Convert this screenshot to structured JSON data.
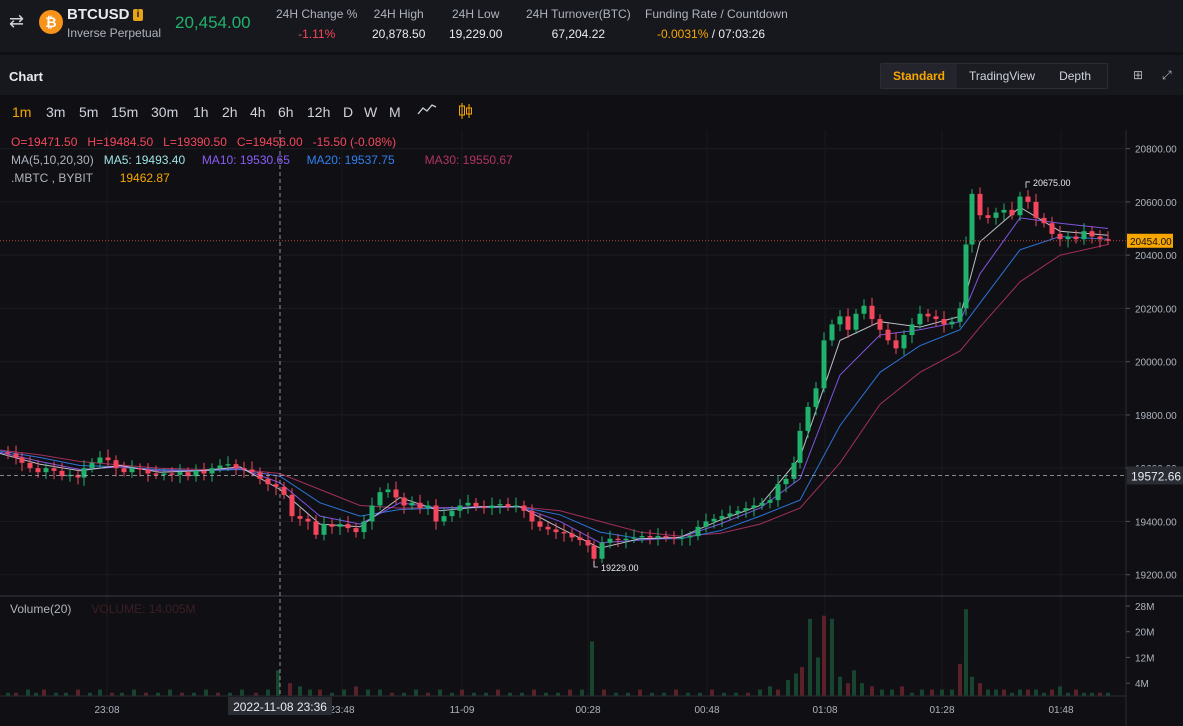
{
  "header": {
    "symbol": "BTCUSD",
    "contract_type": "Inverse Perpetual",
    "last_price": "20,454.00",
    "stats": [
      {
        "label": "24H Change %",
        "value": "-1.11%",
        "color": "#f6465d"
      },
      {
        "label": "24H High",
        "value": "20,878.50",
        "color": "#e8eaf0"
      },
      {
        "label": "24H Low",
        "value": "19,229.00",
        "color": "#e8eaf0"
      },
      {
        "label": "24H Turnover(BTC)",
        "value": "67,204.22",
        "color": "#e8eaf0"
      }
    ],
    "funding": {
      "label": "Funding Rate / Countdown",
      "rate": "-0.0031%",
      "countdown": "/ 07:03:26"
    }
  },
  "chart_header": {
    "title": "Chart",
    "tabs": [
      {
        "label": "Standard",
        "active": true
      },
      {
        "label": "TradingView",
        "active": false
      },
      {
        "label": "Depth",
        "active": false
      }
    ]
  },
  "intervals": {
    "items": [
      "1m",
      "3m",
      "5m",
      "15m",
      "30m",
      "1h",
      "2h",
      "4h",
      "6h",
      "12h",
      "D",
      "W",
      "M"
    ],
    "active": "1m"
  },
  "ohlc_legend": {
    "o": "O=19471.50",
    "h": "H=19484.50",
    "l": "L=19390.50",
    "c": "C=19456.00",
    "chg": "-15.50",
    "chg_pct": "(-0.08%)"
  },
  "ma_legend": {
    "label": "MA(5,10,20,30)",
    "ma5": "MA5: 19493.40",
    "ma10": "MA10: 19530.65",
    "ma20": "MA20: 19537.75",
    "ma30": "MA30: 19550.67"
  },
  "index_legend": {
    "label": ".MBTC , BYBIT",
    "value": "19462.87"
  },
  "volume_legend": {
    "label": "Volume(20)",
    "value": "VOLUME: 14.005M"
  },
  "crosshair": {
    "time": "2022-11-08 23:36",
    "price": "19572.66"
  },
  "colors": {
    "up": "#20b26c",
    "down": "#f6465d",
    "accent": "#f7a600",
    "ma5": "#cfd3dc",
    "ma10": "#8b5cf6",
    "ma20": "#2f80ed",
    "ma30": "#b13263"
  },
  "chart_data": {
    "type": "candlestick",
    "price_axis_ticks": [
      19200,
      19400,
      19600,
      19800,
      20000,
      20200,
      20400,
      20600,
      20800
    ],
    "price_axis_labels": [
      "19200.00",
      "19400.00",
      "19600.00",
      "19800.00",
      "20000.00",
      "20200.00",
      "20400.00",
      "20600.00",
      "20800.00"
    ],
    "ylim": [
      19120,
      20870
    ],
    "time_labels": [
      "23:08",
      "23:48",
      "11-09",
      "00:28",
      "00:48",
      "01:08",
      "01:28",
      "01:48"
    ],
    "current_price": "20454.00",
    "high_marker": "20675.00",
    "low_marker": "19229.00",
    "volume_ticks": [
      "4M",
      "12M",
      "20M",
      "28M"
    ],
    "volume_max": 28,
    "price_path": [
      [
        0,
        19660
      ],
      [
        8,
        19655
      ],
      [
        16,
        19640
      ],
      [
        22,
        19620
      ],
      [
        30,
        19600
      ],
      [
        38,
        19585
      ],
      [
        46,
        19600
      ],
      [
        54,
        19590
      ],
      [
        62,
        19570
      ],
      [
        70,
        19575
      ],
      [
        78,
        19565
      ],
      [
        84,
        19600
      ],
      [
        92,
        19620
      ],
      [
        100,
        19640
      ],
      [
        108,
        19630
      ],
      [
        116,
        19600
      ],
      [
        124,
        19585
      ],
      [
        132,
        19600
      ],
      [
        140,
        19595
      ],
      [
        148,
        19580
      ],
      [
        156,
        19575
      ],
      [
        164,
        19580
      ],
      [
        172,
        19575
      ],
      [
        180,
        19585
      ],
      [
        188,
        19570
      ],
      [
        196,
        19590
      ],
      [
        204,
        19580
      ],
      [
        212,
        19600
      ],
      [
        220,
        19610
      ],
      [
        228,
        19615
      ],
      [
        236,
        19600
      ],
      [
        244,
        19595
      ],
      [
        252,
        19585
      ],
      [
        260,
        19560
      ],
      [
        268,
        19540
      ],
      [
        276,
        19530
      ],
      [
        284,
        19500
      ],
      [
        292,
        19420
      ],
      [
        300,
        19410
      ],
      [
        308,
        19400
      ],
      [
        316,
        19350
      ],
      [
        324,
        19390
      ],
      [
        332,
        19380
      ],
      [
        340,
        19390
      ],
      [
        348,
        19375
      ],
      [
        356,
        19360
      ],
      [
        364,
        19400
      ],
      [
        372,
        19460
      ],
      [
        380,
        19510
      ],
      [
        388,
        19520
      ],
      [
        396,
        19490
      ],
      [
        404,
        19460
      ],
      [
        412,
        19470
      ],
      [
        420,
        19450
      ],
      [
        428,
        19460
      ],
      [
        436,
        19400
      ],
      [
        444,
        19420
      ],
      [
        452,
        19440
      ],
      [
        460,
        19460
      ],
      [
        468,
        19470
      ],
      [
        476,
        19455
      ],
      [
        484,
        19450
      ],
      [
        492,
        19460
      ],
      [
        500,
        19465
      ],
      [
        508,
        19455
      ],
      [
        516,
        19460
      ],
      [
        524,
        19440
      ],
      [
        532,
        19400
      ],
      [
        540,
        19380
      ],
      [
        548,
        19370
      ],
      [
        556,
        19360
      ],
      [
        564,
        19355
      ],
      [
        572,
        19340
      ],
      [
        580,
        19330
      ],
      [
        588,
        19310
      ],
      [
        594,
        19260
      ],
      [
        602,
        19320
      ],
      [
        610,
        19335
      ],
      [
        618,
        19330
      ],
      [
        626,
        19335
      ],
      [
        634,
        19340
      ],
      [
        642,
        19345
      ],
      [
        650,
        19340
      ],
      [
        658,
        19345
      ],
      [
        666,
        19340
      ],
      [
        674,
        19335
      ],
      [
        682,
        19340
      ],
      [
        690,
        19345
      ],
      [
        698,
        19380
      ],
      [
        706,
        19400
      ],
      [
        714,
        19410
      ],
      [
        722,
        19420
      ],
      [
        730,
        19430
      ],
      [
        738,
        19440
      ],
      [
        746,
        19450
      ],
      [
        754,
        19460
      ],
      [
        762,
        19470
      ],
      [
        770,
        19480
      ],
      [
        778,
        19540
      ],
      [
        786,
        19560
      ],
      [
        794,
        19620
      ],
      [
        800,
        19740
      ],
      [
        808,
        19830
      ],
      [
        816,
        19900
      ],
      [
        824,
        20080
      ],
      [
        832,
        20140
      ],
      [
        840,
        20170
      ],
      [
        848,
        20120
      ],
      [
        856,
        20180
      ],
      [
        864,
        20210
      ],
      [
        872,
        20160
      ],
      [
        880,
        20120
      ],
      [
        888,
        20080
      ],
      [
        896,
        20050
      ],
      [
        904,
        20100
      ],
      [
        912,
        20140
      ],
      [
        920,
        20180
      ],
      [
        928,
        20170
      ],
      [
        936,
        20160
      ],
      [
        944,
        20140
      ],
      [
        952,
        20150
      ],
      [
        960,
        20200
      ],
      [
        966,
        20440
      ],
      [
        972,
        20630
      ],
      [
        980,
        20550
      ],
      [
        988,
        20540
      ],
      [
        996,
        20560
      ],
      [
        1004,
        20570
      ],
      [
        1012,
        20550
      ],
      [
        1020,
        20620
      ],
      [
        1028,
        20600
      ],
      [
        1036,
        20540
      ],
      [
        1044,
        20520
      ],
      [
        1052,
        20480
      ],
      [
        1060,
        20460
      ],
      [
        1068,
        20470
      ],
      [
        1076,
        20460
      ],
      [
        1084,
        20490
      ],
      [
        1092,
        20470
      ],
      [
        1100,
        20460
      ],
      [
        1108,
        20454
      ]
    ],
    "ma5_path": [
      [
        0,
        19655
      ],
      [
        40,
        19615
      ],
      [
        80,
        19590
      ],
      [
        120,
        19610
      ],
      [
        160,
        19585
      ],
      [
        200,
        19590
      ],
      [
        240,
        19605
      ],
      [
        280,
        19520
      ],
      [
        320,
        19390
      ],
      [
        360,
        19380
      ],
      [
        400,
        19490
      ],
      [
        440,
        19440
      ],
      [
        480,
        19455
      ],
      [
        520,
        19455
      ],
      [
        560,
        19375
      ],
      [
        600,
        19300
      ],
      [
        640,
        19335
      ],
      [
        680,
        19340
      ],
      [
        720,
        19405
      ],
      [
        760,
        19460
      ],
      [
        800,
        19640
      ],
      [
        840,
        20080
      ],
      [
        880,
        20150
      ],
      [
        920,
        20130
      ],
      [
        960,
        20170
      ],
      [
        980,
        20450
      ],
      [
        1020,
        20580
      ],
      [
        1060,
        20490
      ],
      [
        1108,
        20475
      ]
    ],
    "ma10_path": [
      [
        0,
        19660
      ],
      [
        40,
        19625
      ],
      [
        80,
        19595
      ],
      [
        120,
        19605
      ],
      [
        160,
        19590
      ],
      [
        200,
        19590
      ],
      [
        240,
        19600
      ],
      [
        280,
        19545
      ],
      [
        320,
        19420
      ],
      [
        360,
        19390
      ],
      [
        400,
        19470
      ],
      [
        440,
        19450
      ],
      [
        480,
        19455
      ],
      [
        520,
        19455
      ],
      [
        560,
        19400
      ],
      [
        600,
        19320
      ],
      [
        640,
        19330
      ],
      [
        680,
        19340
      ],
      [
        720,
        19390
      ],
      [
        760,
        19450
      ],
      [
        800,
        19560
      ],
      [
        840,
        19950
      ],
      [
        880,
        20100
      ],
      [
        920,
        20120
      ],
      [
        960,
        20150
      ],
      [
        980,
        20330
      ],
      [
        1020,
        20540
      ],
      [
        1060,
        20520
      ],
      [
        1108,
        20500
      ]
    ],
    "ma20_path": [
      [
        0,
        19665
      ],
      [
        40,
        19640
      ],
      [
        80,
        19610
      ],
      [
        120,
        19605
      ],
      [
        160,
        19595
      ],
      [
        200,
        19590
      ],
      [
        240,
        19595
      ],
      [
        280,
        19570
      ],
      [
        320,
        19470
      ],
      [
        360,
        19420
      ],
      [
        400,
        19445
      ],
      [
        440,
        19450
      ],
      [
        480,
        19452
      ],
      [
        520,
        19455
      ],
      [
        560,
        19425
      ],
      [
        600,
        19360
      ],
      [
        640,
        19335
      ],
      [
        680,
        19335
      ],
      [
        720,
        19365
      ],
      [
        760,
        19420
      ],
      [
        800,
        19480
      ],
      [
        840,
        19760
      ],
      [
        880,
        19960
      ],
      [
        920,
        20060
      ],
      [
        960,
        20120
      ],
      [
        980,
        20220
      ],
      [
        1020,
        20420
      ],
      [
        1060,
        20470
      ],
      [
        1108,
        20460
      ]
    ],
    "ma30_path": [
      [
        0,
        19668
      ],
      [
        40,
        19650
      ],
      [
        80,
        19625
      ],
      [
        120,
        19612
      ],
      [
        160,
        19600
      ],
      [
        200,
        19595
      ],
      [
        240,
        19595
      ],
      [
        280,
        19580
      ],
      [
        320,
        19520
      ],
      [
        360,
        19460
      ],
      [
        400,
        19450
      ],
      [
        440,
        19452
      ],
      [
        480,
        19453
      ],
      [
        520,
        19455
      ],
      [
        560,
        19440
      ],
      [
        600,
        19400
      ],
      [
        640,
        19360
      ],
      [
        680,
        19345
      ],
      [
        720,
        19355
      ],
      [
        760,
        19390
      ],
      [
        800,
        19450
      ],
      [
        840,
        19620
      ],
      [
        880,
        19840
      ],
      [
        920,
        19960
      ],
      [
        960,
        20040
      ],
      [
        980,
        20130
      ],
      [
        1020,
        20300
      ],
      [
        1060,
        20400
      ],
      [
        1108,
        20440
      ]
    ],
    "volume_bars": [
      [
        8,
        1
      ],
      [
        16,
        1
      ],
      [
        28,
        2
      ],
      [
        36,
        1
      ],
      [
        44,
        2
      ],
      [
        56,
        1
      ],
      [
        66,
        1
      ],
      [
        78,
        2
      ],
      [
        90,
        1
      ],
      [
        100,
        2
      ],
      [
        112,
        1
      ],
      [
        122,
        1
      ],
      [
        134,
        2
      ],
      [
        146,
        1
      ],
      [
        158,
        1
      ],
      [
        170,
        2
      ],
      [
        182,
        1
      ],
      [
        194,
        1
      ],
      [
        206,
        2
      ],
      [
        218,
        1
      ],
      [
        230,
        1
      ],
      [
        242,
        2
      ],
      [
        256,
        1
      ],
      [
        268,
        2
      ],
      [
        278,
        8
      ],
      [
        290,
        4
      ],
      [
        300,
        3
      ],
      [
        310,
        2
      ],
      [
        320,
        2
      ],
      [
        332,
        1
      ],
      [
        344,
        2
      ],
      [
        356,
        3
      ],
      [
        368,
        2
      ],
      [
        380,
        2
      ],
      [
        392,
        1
      ],
      [
        404,
        1
      ],
      [
        416,
        2
      ],
      [
        428,
        1
      ],
      [
        440,
        2
      ],
      [
        452,
        1
      ],
      [
        462,
        2
      ],
      [
        474,
        1
      ],
      [
        486,
        1
      ],
      [
        498,
        2
      ],
      [
        510,
        1
      ],
      [
        522,
        1
      ],
      [
        534,
        2
      ],
      [
        546,
        1
      ],
      [
        558,
        1
      ],
      [
        570,
        2
      ],
      [
        582,
        2
      ],
      [
        592,
        17
      ],
      [
        604,
        2
      ],
      [
        616,
        1
      ],
      [
        628,
        1
      ],
      [
        640,
        2
      ],
      [
        652,
        1
      ],
      [
        664,
        1
      ],
      [
        676,
        2
      ],
      [
        688,
        1
      ],
      [
        700,
        1
      ],
      [
        712,
        2
      ],
      [
        724,
        1
      ],
      [
        736,
        1
      ],
      [
        748,
        1
      ],
      [
        760,
        2
      ],
      [
        770,
        3
      ],
      [
        778,
        2
      ],
      [
        788,
        5
      ],
      [
        796,
        7
      ],
      [
        802,
        9
      ],
      [
        810,
        24
      ],
      [
        818,
        12
      ],
      [
        824,
        25
      ],
      [
        832,
        24
      ],
      [
        840,
        6
      ],
      [
        848,
        4
      ],
      [
        854,
        8
      ],
      [
        862,
        4
      ],
      [
        872,
        3
      ],
      [
        882,
        2
      ],
      [
        892,
        2
      ],
      [
        902,
        3
      ],
      [
        912,
        1
      ],
      [
        922,
        2
      ],
      [
        932,
        2
      ],
      [
        942,
        2
      ],
      [
        952,
        2
      ],
      [
        960,
        10
      ],
      [
        966,
        27
      ],
      [
        972,
        6
      ],
      [
        980,
        4
      ],
      [
        988,
        2
      ],
      [
        996,
        2
      ],
      [
        1004,
        2
      ],
      [
        1012,
        1
      ],
      [
        1020,
        2
      ],
      [
        1028,
        2
      ],
      [
        1036,
        2
      ],
      [
        1044,
        1
      ],
      [
        1052,
        2
      ],
      [
        1060,
        3
      ],
      [
        1068,
        1
      ],
      [
        1076,
        2
      ],
      [
        1084,
        1
      ],
      [
        1092,
        1
      ],
      [
        1100,
        1
      ],
      [
        1108,
        1
      ]
    ]
  }
}
